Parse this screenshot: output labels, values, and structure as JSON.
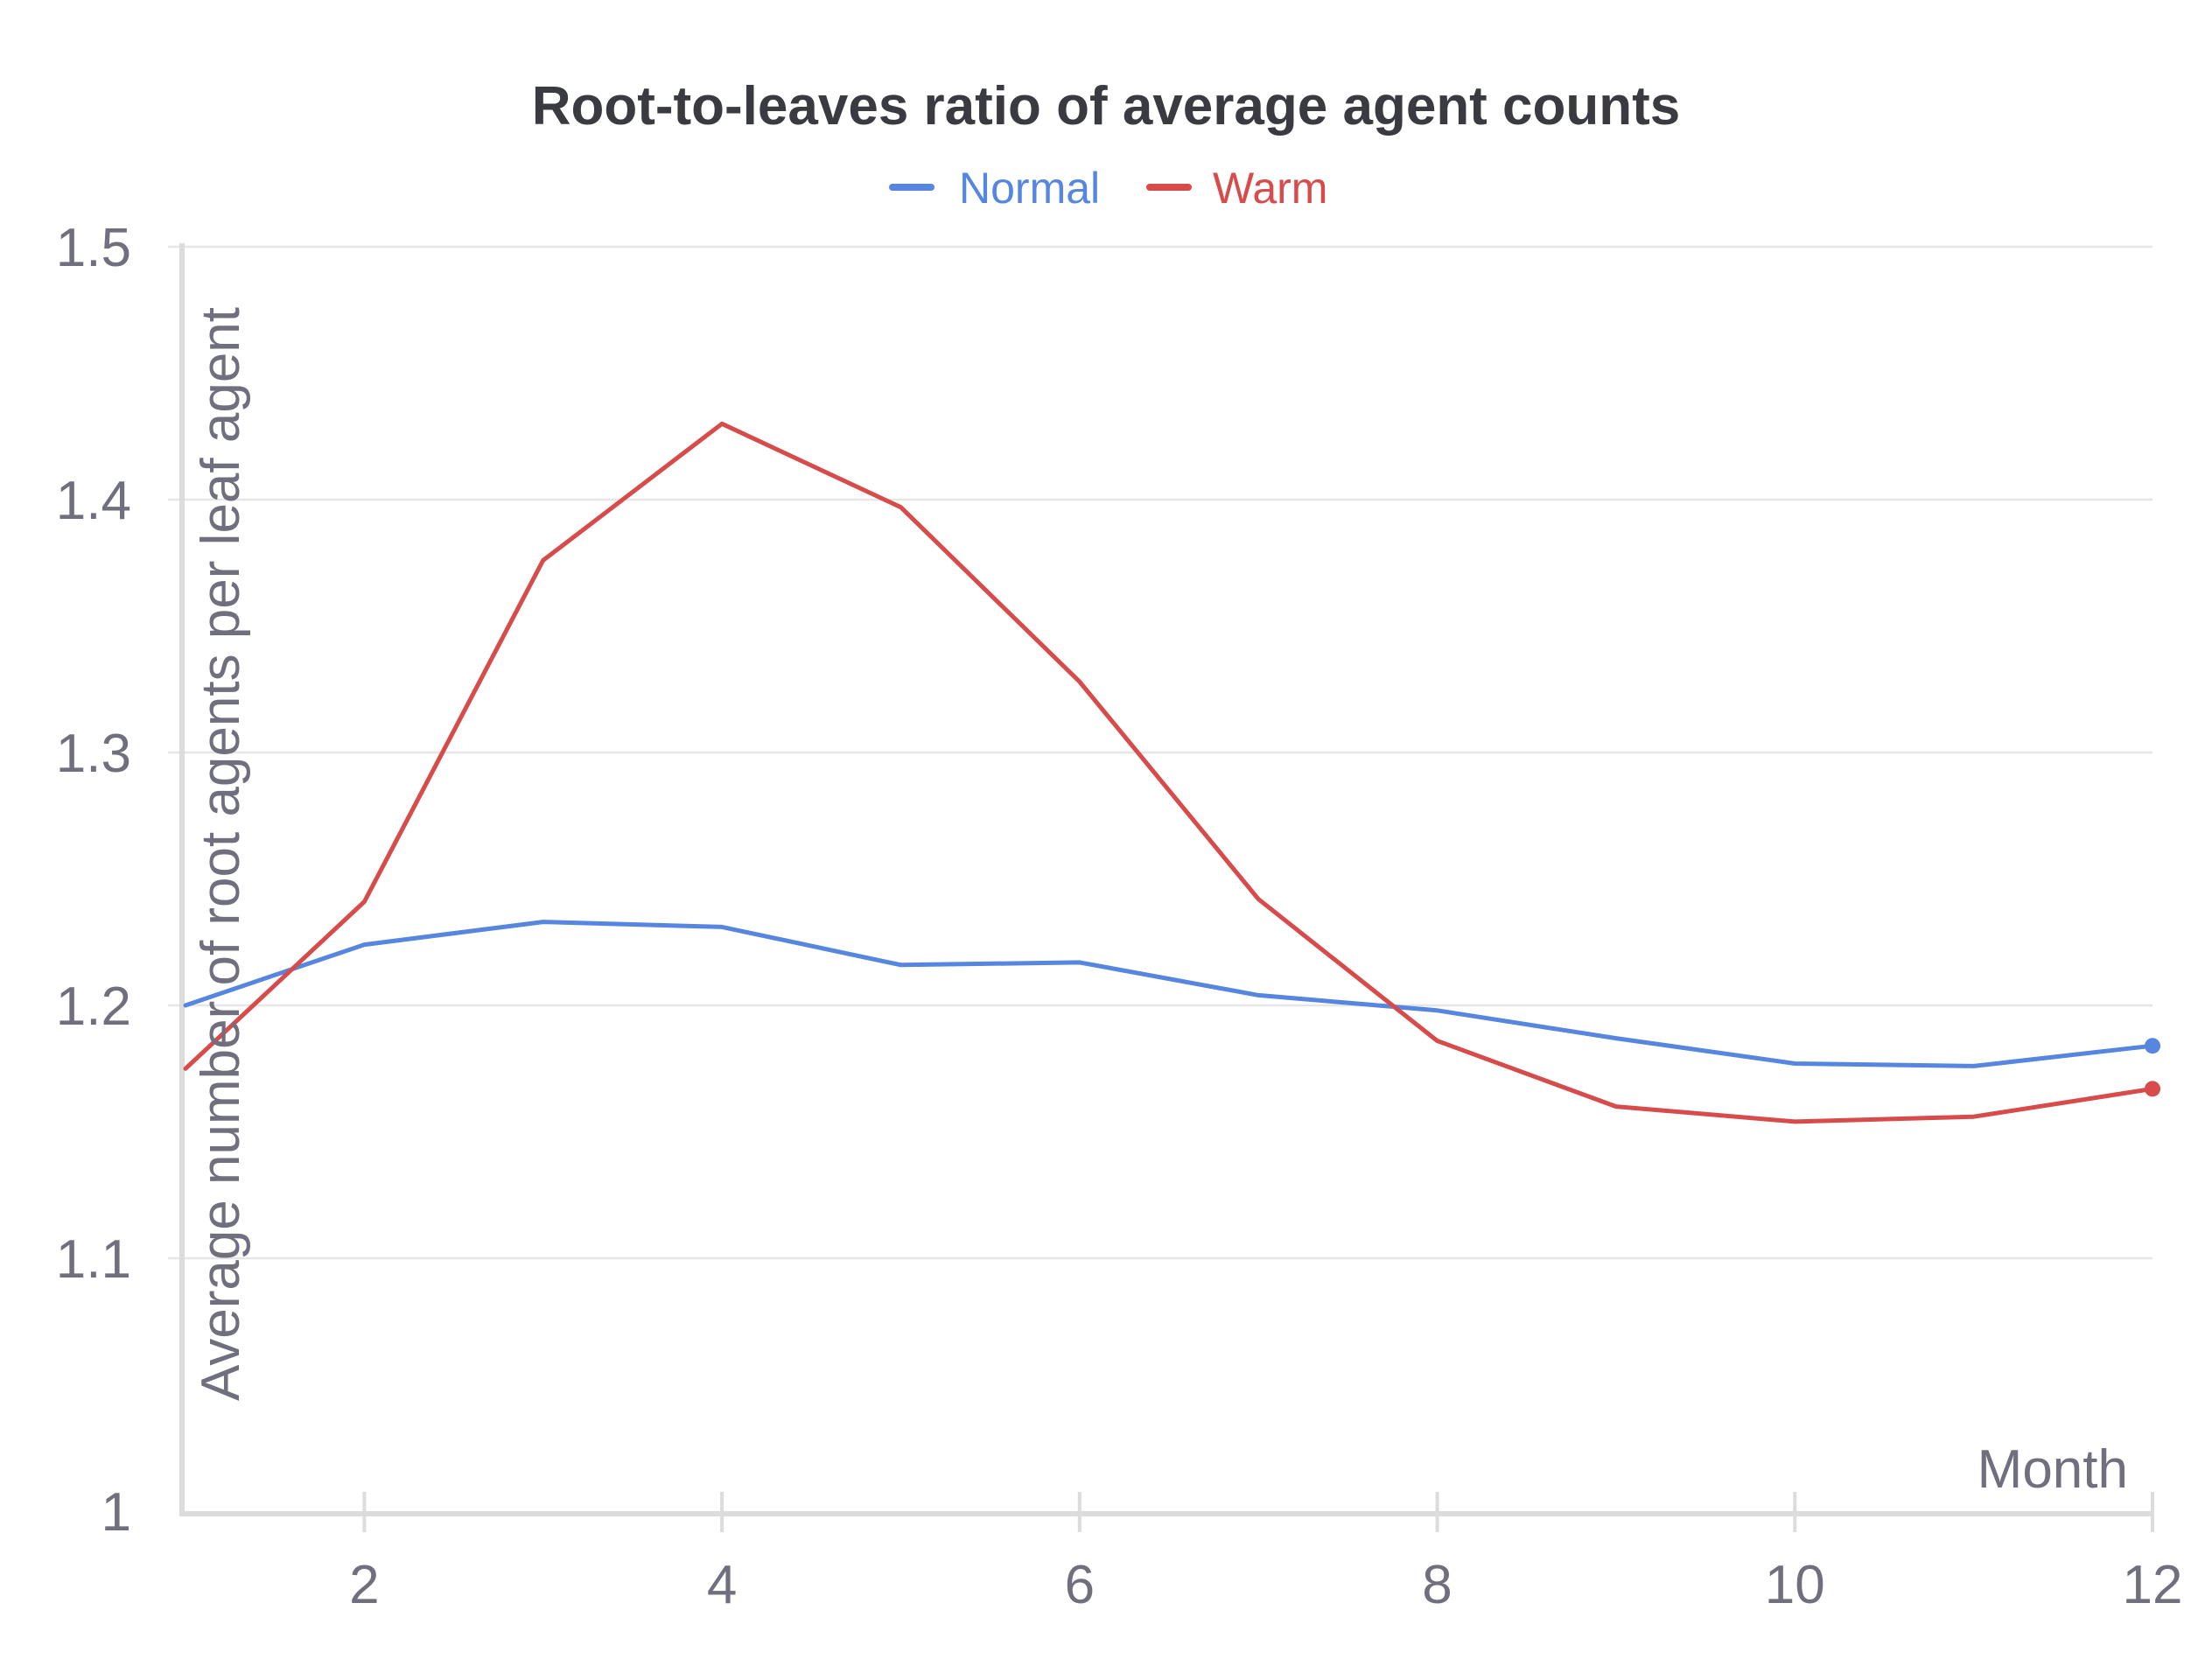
{
  "chart_data": {
    "type": "line",
    "title": "Root-to-leaves ratio of average agent counts",
    "xlabel": "Month",
    "ylabel": "Average number of root agents per leaf agent",
    "x": [
      1,
      2,
      3,
      4,
      5,
      6,
      7,
      8,
      9,
      10,
      11,
      12
    ],
    "xlim": [
      1,
      12
    ],
    "ylim": [
      1,
      1.5
    ],
    "x_ticks": [
      2,
      4,
      6,
      8,
      10,
      12
    ],
    "x_tick_labels": [
      "2",
      "4",
      "6",
      "8",
      "10",
      "12"
    ],
    "y_ticks": [
      1,
      1.1,
      1.2,
      1.3,
      1.4,
      1.5
    ],
    "y_tick_labels": [
      "1",
      "1.1",
      "1.2",
      "1.3",
      "1.4",
      "1.5"
    ],
    "grid": true,
    "legend_position": "top-center",
    "series": [
      {
        "name": "Normal",
        "color": "#5686e0",
        "values": [
          1.2,
          1.224,
          1.233,
          1.231,
          1.216,
          1.217,
          1.204,
          1.198,
          1.187,
          1.177,
          1.176,
          1.184
        ]
      },
      {
        "name": "Warm",
        "color": "#d84b4b",
        "values": [
          1.175,
          1.241,
          1.376,
          1.43,
          1.397,
          1.328,
          1.242,
          1.186,
          1.16,
          1.154,
          1.156,
          1.167
        ]
      }
    ]
  }
}
